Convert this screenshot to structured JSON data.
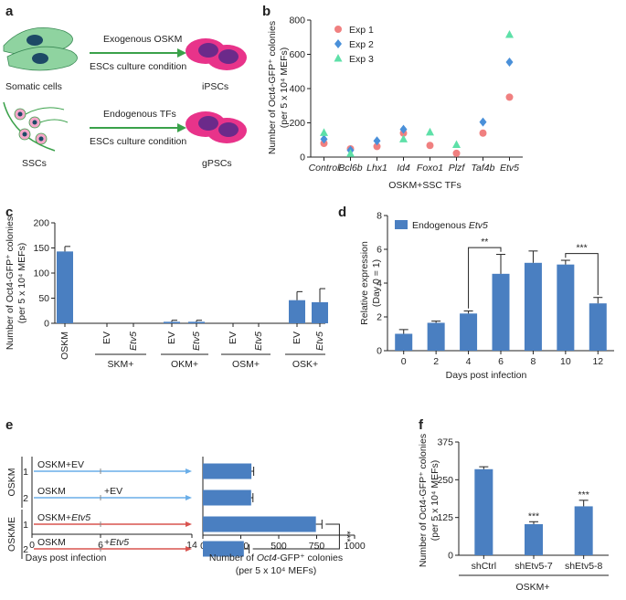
{
  "panel_letters": {
    "a": "a",
    "b": "b",
    "c": "c",
    "d": "d",
    "e": "e",
    "f": "f"
  },
  "panel_a": {
    "top_arrow_text_1": "Exogenous OSKM",
    "top_arrow_text_2": "ESCs culture condition",
    "top_source": "Somatic cells",
    "top_target": "iPSCs",
    "bottom_arrow_text_1": "Endogenous TFs",
    "bottom_arrow_text_2": "ESCs culture condition",
    "bottom_source": "SSCs",
    "bottom_target": "gPSCs",
    "colors": {
      "cell_green": "#8fd3a0",
      "cell_nucleus": "#1d4a66",
      "psc_pink": "#e8338a",
      "psc_purple": "#6b2a8a",
      "ssc_pink": "#f4a6c8",
      "arrow_green": "#3aa14a"
    }
  },
  "chart_data": [
    {
      "panel": "b",
      "type": "scatter",
      "categories": [
        "Control",
        "Bcl6b",
        "Lhx1",
        "Id4",
        "Foxo1",
        "Plzf",
        "Taf4b",
        "Etv5"
      ],
      "series": [
        {
          "name": "Exp 1",
          "marker": "circle",
          "color": "#f08080",
          "values": [
            80,
            48,
            62,
            140,
            68,
            22,
            140,
            350
          ]
        },
        {
          "name": "Exp 2",
          "marker": "diamond",
          "color": "#4a90d9",
          "values": [
            105,
            40,
            95,
            162,
            null,
            null,
            205,
            555
          ]
        },
        {
          "name": "Exp 3",
          "marker": "triangle",
          "color": "#5ee0a8",
          "values": [
            142,
            20,
            null,
            105,
            145,
            72,
            null,
            715
          ]
        }
      ],
      "ylabel_1": "Number of Oct4-GFP⁺ colonies",
      "ylabel_2": "(per 5 x 10⁴ MEFs)",
      "xlabel": "OSKM+SSC TFs",
      "ylim": [
        0,
        800
      ],
      "yticks": [
        "0",
        "200",
        "400",
        "600",
        "800"
      ],
      "legend": "top-left"
    },
    {
      "panel": "c",
      "type": "bar",
      "categories": [
        "OSKM",
        "EV",
        "Etv5",
        "EV",
        "Etv5",
        "EV",
        "Etv5",
        "EV",
        "Etv5"
      ],
      "values": [
        143,
        0,
        0,
        3,
        3,
        0,
        0,
        46,
        42
      ],
      "errors": [
        10,
        0,
        0,
        3,
        3,
        0,
        0,
        17,
        27
      ],
      "groups": [
        "SKM+",
        "OKM+",
        "OSM+",
        "OSK+"
      ],
      "ylabel_1": "Number of Oct4-GFP⁺ colonies",
      "ylabel_2": "(per 5 x 10⁴ MEFs)",
      "ylim": [
        0,
        200
      ],
      "yticks": [
        "0",
        "50",
        "100",
        "150",
        "200"
      ],
      "color": "#4a7fc1"
    },
    {
      "panel": "d",
      "type": "bar",
      "categories": [
        "0",
        "2",
        "4",
        "6",
        "8",
        "10",
        "12"
      ],
      "values": [
        1.0,
        1.65,
        2.2,
        4.55,
        5.2,
        5.1,
        2.8
      ],
      "errors": [
        0.25,
        0.1,
        0.15,
        1.15,
        0.7,
        0.25,
        0.35
      ],
      "legend_label_1": "Endogenous ",
      "legend_label_2": "Etv5",
      "ylabel_1": "Relative expression",
      "ylabel_2": "(Day 0 = 1)",
      "xlabel": "Days post infection",
      "ylim": [
        0,
        8
      ],
      "yticks": [
        "0",
        "2",
        "4",
        "6",
        "8"
      ],
      "significance": [
        {
          "from": "4",
          "to": "6",
          "label": "**"
        },
        {
          "from": "10",
          "to": "12",
          "label": "***"
        }
      ],
      "color": "#4a7fc1",
      "legend": "top-left"
    },
    {
      "panel": "e",
      "type": "bar",
      "orientation": "horizontal",
      "timeline_rows": [
        {
          "group": "OSKM",
          "rep": "1",
          "text_start": "OSKM+EV",
          "text_mid": "",
          "color": "#6aaee8"
        },
        {
          "group": "OSKM",
          "rep": "2",
          "text_start": "OSKM",
          "text_mid": "+EV",
          "color": "#6aaee8"
        },
        {
          "group": "OSKME",
          "rep": "1",
          "text_start": "OSKM+",
          "text_start_italic": "Etv5",
          "text_mid": "",
          "color": "#d9534f"
        },
        {
          "group": "OSKME",
          "rep": "2",
          "text_start": "OSKM",
          "text_mid": "+",
          "text_mid_italic": "Etv5",
          "color": "#d9534f"
        }
      ],
      "timeline_xticks": [
        "0",
        "6",
        "14"
      ],
      "timeline_xlabel": "Days post infection",
      "groups": [
        "OSKM",
        "OSKME"
      ],
      "values": [
        320,
        318,
        745,
        270
      ],
      "errors": [
        15,
        12,
        40,
        35
      ],
      "xlim": [
        0,
        1000
      ],
      "xticks": [
        "0",
        "250",
        "500",
        "750",
        "1000"
      ],
      "xlabel_1": "Number of ",
      "xlabel_2": "Oct4",
      "xlabel_3": "-GFP⁺ colonies",
      "xlabel_4": "(per 5 x 10⁴ MEFs)",
      "significance": "***",
      "color": "#4a7fc1"
    },
    {
      "panel": "f",
      "type": "bar",
      "categories": [
        "shCtrl",
        "shEtv5-7",
        "shEtv5-8"
      ],
      "values": [
        285,
        103,
        162
      ],
      "errors": [
        8,
        8,
        20
      ],
      "significance": [
        "",
        "***",
        "***"
      ],
      "ylabel_1": "Number of Oct4-GFP⁺ colonies",
      "ylabel_2": "(per 5 x 10⁴ MEFs)",
      "xlabel": "OSKM+",
      "ylim": [
        0,
        375
      ],
      "yticks": [
        "0",
        "125",
        "250",
        "375"
      ],
      "color": "#4a7fc1"
    }
  ]
}
